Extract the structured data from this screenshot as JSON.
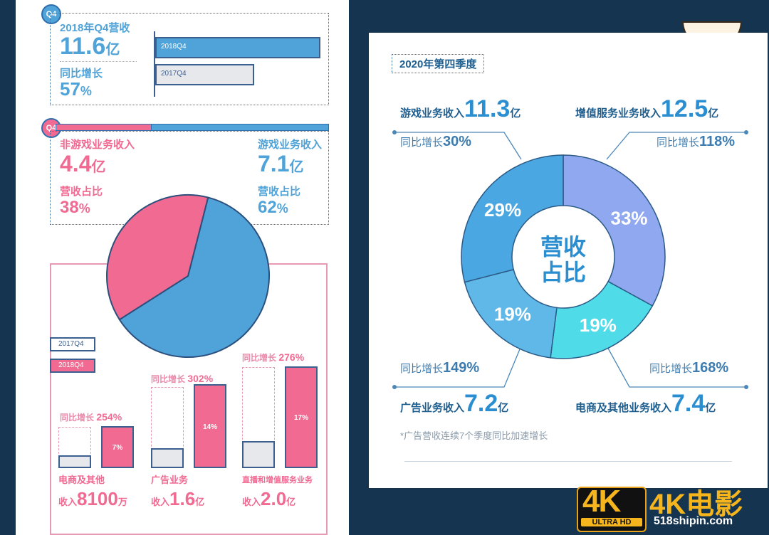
{
  "left": {
    "top_section": {
      "badge": "Q4",
      "revenue_label": "2018年Q4营收",
      "revenue_value": "11.6",
      "revenue_unit": "亿",
      "growth_label": "同比增长",
      "growth_value": "57",
      "growth_unit": "%",
      "bars": [
        {
          "label": "2018Q4",
          "value": 11.6
        },
        {
          "label": "2017Q4",
          "value": 7.4
        }
      ]
    },
    "split_section": {
      "badge": "Q4",
      "non_game_label": "非游戏业务收入",
      "non_game_value": "4.4",
      "non_game_unit": "亿",
      "non_game_share_label": "营收占比",
      "non_game_share": "38",
      "game_label": "游戏业务收入",
      "game_value": "7.1",
      "game_unit": "亿",
      "game_share_label": "营收占比",
      "game_share": "62",
      "pct": "%"
    },
    "legend": {
      "old": "2017Q4",
      "new": "2018Q4"
    },
    "categories": [
      {
        "name": "电商及其他",
        "prefix": "收入",
        "value": "8100",
        "unit": "万",
        "growth_label": "同比增长",
        "growth": "254%",
        "share": "7%",
        "share_num": 7
      },
      {
        "name": "广告业务",
        "prefix": "收入",
        "value": "1.6",
        "unit": "亿",
        "growth_label": "同比增长",
        "growth": "302%",
        "share": "14%",
        "share_num": 14
      },
      {
        "name": "直播和增值服务业务",
        "prefix": "收入",
        "value": "2.0",
        "unit": "亿",
        "growth_label": "同比增长",
        "growth": "276%",
        "share": "17%",
        "share_num": 17
      }
    ]
  },
  "right": {
    "title": "2020年第四季度",
    "center_line1": "营收",
    "center_line2": "占比",
    "segments": [
      {
        "name": "游戏业务收入",
        "value": "11.3",
        "unit": "亿",
        "growth_label": "同比增长",
        "growth": "30%",
        "share": "29%"
      },
      {
        "name": "增值服务业务收入",
        "value": "12.5",
        "unit": "亿",
        "growth_label": "同比增长",
        "growth": "118%",
        "share": "33%"
      },
      {
        "name": "广告业务收入",
        "value": "7.2",
        "unit": "亿",
        "growth_label": "同比增长",
        "growth": "149%",
        "share": "19%"
      },
      {
        "name": "电商及其他业务收入",
        "value": "7.4",
        "unit": "亿",
        "growth_label": "同比增长",
        "growth": "168%",
        "share": "19%"
      }
    ],
    "footnote": "*广告营收连续7个季度同比加速增长"
  },
  "watermark": {
    "badge_big": "4K",
    "badge_small": "ULTRA HD",
    "brand": "4K电影",
    "site": "518shipin.com"
  },
  "colors": {
    "background": "#143450",
    "blue": "#4fa3d8",
    "pink": "#f06a92",
    "donut_game": "#4aa7e2",
    "donut_vas": "#8fa8f0",
    "donut_ad": "#5fb8e8",
    "donut_ecom": "#4fdce8"
  },
  "chart_data": [
    {
      "type": "bar",
      "categories": [
        "2018Q4",
        "2017Q4"
      ],
      "values": [
        11.6,
        7.4
      ],
      "title": "2018年Q4营收"
    },
    {
      "type": "pie",
      "labels": [
        "非游戏业务收入",
        "游戏业务收入"
      ],
      "values": [
        38,
        62
      ]
    },
    {
      "type": "bar",
      "categories": [
        "电商及其他",
        "广告业务",
        "直播和增值服务业务"
      ],
      "series": [
        {
          "name": "2018Q4",
          "values": [
            7,
            14,
            17
          ]
        }
      ]
    },
    {
      "type": "pie",
      "title": "2020年第四季度",
      "labels": [
        "增值服务业务收入",
        "电商及其他业务收入",
        "广告业务收入",
        "游戏业务收入"
      ],
      "values": [
        33,
        19,
        19,
        29
      ]
    }
  ]
}
